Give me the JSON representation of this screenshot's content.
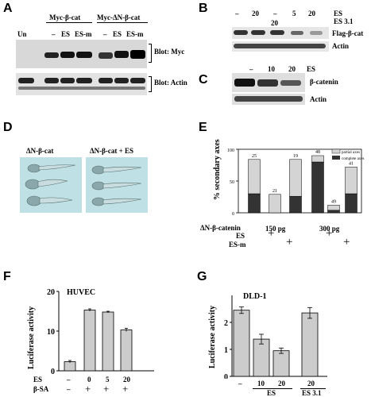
{
  "panels": {
    "A": {
      "label": "A",
      "groups": [
        "Myc-β-cat",
        "Myc-ΔN-β-cat"
      ],
      "lanes": [
        "Un",
        "–",
        "ES",
        "ES-m",
        "–",
        "ES",
        "ES-m"
      ],
      "blot_labels": [
        "Blot: Myc",
        "Blot: Actin"
      ]
    },
    "B": {
      "label": "B",
      "columns": [
        "–",
        "20",
        "–",
        "20",
        "5",
        "20"
      ],
      "treatments": [
        "ES",
        "ES 3.1"
      ],
      "blot_labels": [
        "Flag-β-cat",
        "Actin"
      ]
    },
    "C": {
      "label": "C",
      "columns": [
        "–",
        "10",
        "20"
      ],
      "treatment": "ES",
      "blot_labels": [
        "β-catenin",
        "Actin"
      ]
    },
    "D": {
      "label": "D",
      "images": [
        "ΔN-β-cat",
        "ΔN-β-cat + ES"
      ]
    },
    "E": {
      "label": "E",
      "legend": [
        "partial axes",
        "complete axes"
      ],
      "row_labels": [
        "ΔN-β-catenin",
        "ES",
        "ES-m"
      ],
      "doses": [
        "150 pg",
        "300 pg"
      ],
      "plus": "+"
    },
    "F": {
      "label": "F",
      "cell_line": "HUVEC",
      "row_labels": [
        "ES",
        "β-SA"
      ],
      "es_values": [
        "–",
        "0",
        "5",
        "20"
      ],
      "bsa_values": [
        "–",
        "+",
        "+",
        "+"
      ]
    },
    "G": {
      "label": "G",
      "cell_line": "DLD-1",
      "x_labels": [
        "–",
        "10",
        "20",
        "20"
      ],
      "group_labels": [
        "ES",
        "ES 3.1"
      ]
    }
  },
  "chart_data": [
    {
      "type": "bar",
      "panel": "E",
      "ylabel": "% secondary axes",
      "ylim": [
        0,
        100
      ],
      "yticks": [
        0,
        50,
        100
      ],
      "x_groups": [
        "150 pg",
        "300 pg"
      ],
      "categories": [
        "150 pg –",
        "150 pg ES",
        "150 pg ES-m",
        "300 pg –",
        "300 pg ES",
        "300 pg ES-m"
      ],
      "n_labels": [
        "25",
        "21",
        "19",
        "48",
        "49",
        "41"
      ],
      "series": [
        {
          "name": "complete axes",
          "values": [
            30,
            0,
            26,
            80,
            4,
            30
          ],
          "color": "#333333"
        },
        {
          "name": "partial axes",
          "values": [
            54,
            29,
            58,
            10,
            8,
            42
          ],
          "color": "#d4d4d4"
        }
      ]
    },
    {
      "type": "bar",
      "panel": "F",
      "title": "HUVEC",
      "ylabel": "Luciferase activity",
      "ylim": [
        0,
        20
      ],
      "yticks": [
        0,
        10,
        20
      ],
      "categories": [
        "–/–",
        "0/+",
        "5/+",
        "20/+"
      ],
      "values": [
        2.3,
        15.3,
        14.8,
        10.3
      ],
      "errors": [
        0.3,
        0.3,
        0.2,
        0.4
      ]
    },
    {
      "type": "bar",
      "panel": "G",
      "title": "DLD-1",
      "ylabel": "Luciferase activity",
      "ylim": [
        0,
        3
      ],
      "yticks": [
        0,
        1,
        2
      ],
      "categories": [
        "–",
        "ES 10",
        "ES 20",
        "ES 3.1 20"
      ],
      "values": [
        2.45,
        1.38,
        0.95,
        2.35
      ],
      "errors": [
        0.12,
        0.18,
        0.1,
        0.2
      ]
    }
  ]
}
